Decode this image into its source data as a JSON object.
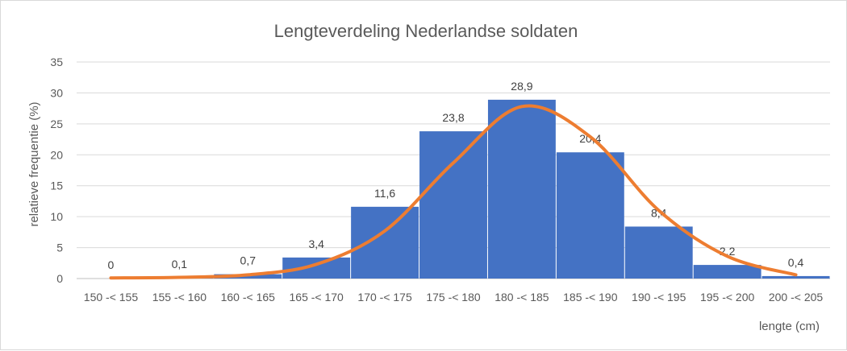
{
  "chart_data": {
    "type": "bar",
    "title": "Lengteverdeling Nederlandse soldaten",
    "xlabel": "lengte (cm)",
    "ylabel": "relatieve frequentie (%)",
    "ylim": [
      0,
      35
    ],
    "yticks": [
      0,
      5,
      10,
      15,
      20,
      25,
      30,
      35
    ],
    "grid": true,
    "categories": [
      "150 -< 155",
      "155 -< 160",
      "160 -< 165",
      "165 -< 170",
      "170 -< 175",
      "175 -< 180",
      "180 -< 185",
      "185 -< 190",
      "190 -< 195",
      "195 -< 200",
      "200 -< 205"
    ],
    "values": [
      0,
      0.1,
      0.7,
      3.4,
      11.6,
      23.8,
      28.9,
      20.4,
      8.4,
      2.2,
      0.4
    ],
    "value_labels": [
      "0",
      "0,1",
      "0,7",
      "3,4",
      "11,6",
      "23,8",
      "28,9",
      "20,4",
      "8,4",
      "2,2",
      "0,4"
    ],
    "bar_color": "#4472c4",
    "curve": {
      "type": "smooth-line",
      "color": "#ed7d31",
      "x": [
        152.5,
        157.5,
        162.5,
        167.5,
        172.5,
        177.5,
        182.5,
        187.5,
        192.5,
        197.5,
        202.5
      ],
      "values": [
        0.1,
        0.2,
        0.6,
        2.3,
        7.7,
        18.7,
        27.8,
        22.9,
        11.0,
        3.6,
        0.6
      ]
    }
  }
}
